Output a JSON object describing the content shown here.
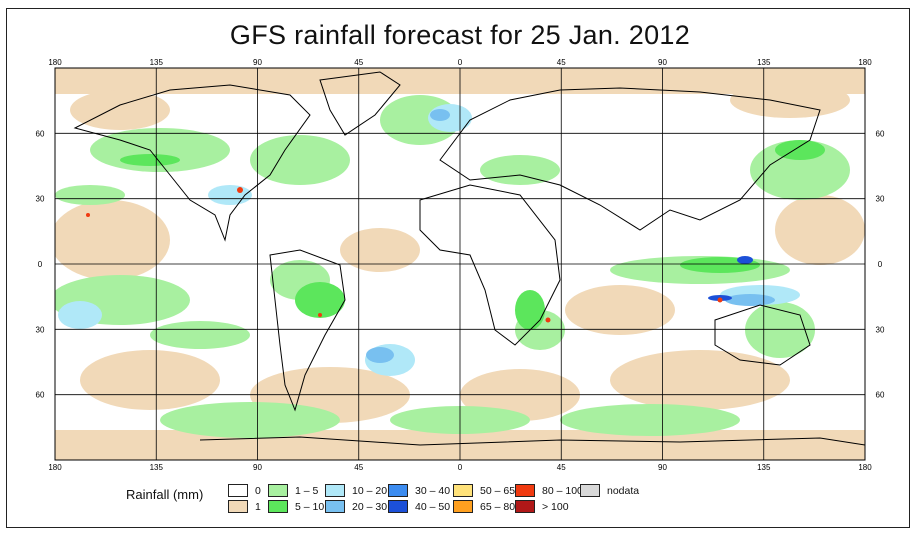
{
  "title": "GFS rainfall forecast for 25 Jan. 2012",
  "map": {
    "lon_labels": [
      "180",
      "135",
      "90",
      "45",
      "0",
      "45",
      "90",
      "135",
      "180"
    ],
    "lat_labels": [
      "60",
      "30",
      "0",
      "30",
      "60"
    ],
    "lon_values": [
      -180,
      -135,
      -90,
      -45,
      0,
      45,
      90,
      135,
      180
    ],
    "lat_values": [
      60,
      30,
      0,
      -30,
      -60
    ]
  },
  "legend": {
    "title": "Rainfall (mm)",
    "items": [
      {
        "label": "0",
        "color": "#ffffff"
      },
      {
        "label": "1",
        "color": "#f1d9b8"
      },
      {
        "label": "1 – 5",
        "color": "#a8f0a0"
      },
      {
        "label": "5 – 10",
        "color": "#5ce65c"
      },
      {
        "label": "10 – 20",
        "color": "#b0e8f8"
      },
      {
        "label": "20 – 30",
        "color": "#78c0f0"
      },
      {
        "label": "30 – 40",
        "color": "#3c8cf0"
      },
      {
        "label": "40 – 50",
        "color": "#1c50d8"
      },
      {
        "label": "50 – 65",
        "color": "#ffe27a"
      },
      {
        "label": "65 – 80",
        "color": "#ffa020"
      },
      {
        "label": "80 – 100",
        "color": "#f03a10"
      },
      {
        "label": "> 100",
        "color": "#b01818"
      },
      {
        "label": "nodata",
        "color": "#d8d8d8"
      }
    ]
  }
}
